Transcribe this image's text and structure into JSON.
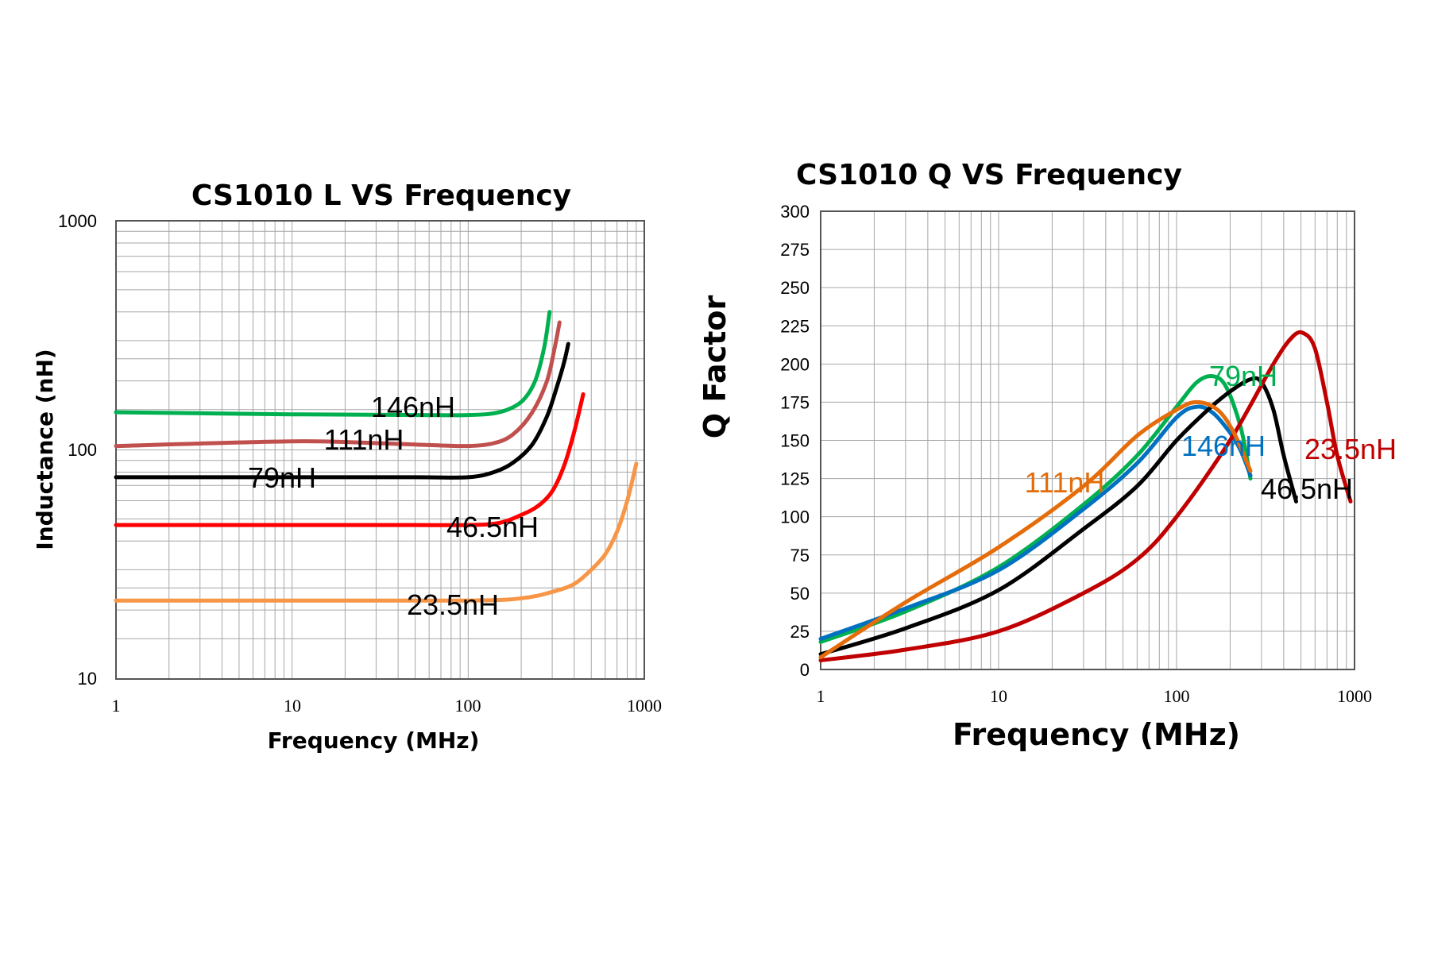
{
  "chart_data": [
    {
      "type": "line",
      "title": "CS1010 L VS Frequency",
      "xlabel": "Frequency (MHz)",
      "ylabel": "Inductance (nH)",
      "xscale": "log",
      "yscale": "log",
      "xlim": [
        1,
        1000
      ],
      "ylim": [
        10,
        1000
      ],
      "xticks": [
        "1",
        "10",
        "100",
        "1000"
      ],
      "yticks": [
        "10",
        "100",
        "1000"
      ],
      "grid": true,
      "series": [
        {
          "name": "146nH",
          "color": "#00b050",
          "x": [
            1,
            10,
            50,
            100,
            150,
            200,
            240,
            270,
            290
          ],
          "y": [
            146,
            143,
            142,
            142,
            146,
            162,
            200,
            280,
            400
          ]
        },
        {
          "name": "111nH",
          "color": "#c0504d",
          "x": [
            1,
            10,
            30,
            60,
            100,
            140,
            180,
            230,
            280,
            310,
            330
          ],
          "y": [
            104,
            109,
            107,
            105,
            104,
            107,
            117,
            145,
            200,
            280,
            360
          ]
        },
        {
          "name": "79nH",
          "color": "#000000",
          "x": [
            1,
            10,
            50,
            100,
            140,
            180,
            230,
            280,
            320,
            350,
            370
          ],
          "y": [
            76,
            76,
            76,
            76,
            80,
            88,
            105,
            140,
            190,
            240,
            290
          ]
        },
        {
          "name": "46.5nH",
          "color": "#ff0000",
          "x": [
            1,
            10,
            50,
            100,
            150,
            200,
            250,
            300,
            350,
            400,
            450
          ],
          "y": [
            47,
            47,
            47,
            47,
            48,
            52,
            57,
            66,
            85,
            120,
            175
          ]
        },
        {
          "name": "23.5nH",
          "color": "#f79646",
          "x": [
            1,
            10,
            100,
            200,
            300,
            400,
            500,
            600,
            700,
            800,
            900
          ],
          "y": [
            22,
            22,
            22,
            22.5,
            24,
            26,
            30,
            35,
            44,
            60,
            87
          ]
        }
      ]
    },
    {
      "type": "line",
      "title": "CS1010 Q VS Frequency",
      "xlabel": "Frequency (MHz)",
      "ylabel": "Q Factor",
      "xscale": "log",
      "yscale": "linear",
      "xlim": [
        1,
        1000
      ],
      "ylim": [
        0,
        300
      ],
      "xticks": [
        "1",
        "10",
        "100",
        "1000"
      ],
      "yticks": [
        "0",
        "25",
        "50",
        "75",
        "100",
        "125",
        "150",
        "175",
        "200",
        "225",
        "250",
        "275",
        "300"
      ],
      "grid": true,
      "series": [
        {
          "name": "79nH",
          "color": "#00b050",
          "x": [
            1,
            3,
            10,
            30,
            60,
            100,
            130,
            160,
            190,
            230,
            260
          ],
          "y": [
            18,
            38,
            67,
            108,
            140,
            172,
            188,
            192,
            185,
            158,
            125
          ]
        },
        {
          "name": "146nH",
          "color": "#0070c0",
          "x": [
            1,
            3,
            10,
            30,
            60,
            100,
            130,
            160,
            200,
            230,
            260
          ],
          "y": [
            20,
            40,
            65,
            105,
            135,
            165,
            172,
            168,
            155,
            143,
            127
          ]
        },
        {
          "name": "46.5nH",
          "color": "#000000",
          "x": [
            1,
            3,
            10,
            30,
            60,
            100,
            150,
            200,
            260,
            300,
            350,
            400,
            470
          ],
          "y": [
            10,
            27,
            52,
            92,
            120,
            150,
            170,
            182,
            190,
            188,
            170,
            140,
            110
          ]
        },
        {
          "name": "23.5nH",
          "color": "#c00000",
          "x": [
            1,
            3,
            10,
            30,
            60,
            100,
            200,
            350,
            450,
            520,
            600,
            700,
            800,
            950
          ],
          "y": [
            6,
            13,
            25,
            50,
            72,
            100,
            150,
            200,
            218,
            220,
            210,
            175,
            140,
            110
          ]
        },
        {
          "name": "111nH",
          "color": "#e46c0a",
          "x": [
            1,
            3,
            10,
            30,
            60,
            100,
            130,
            170,
            210,
            260
          ],
          "y": [
            8,
            44,
            80,
            120,
            153,
            170,
            175,
            170,
            155,
            130
          ]
        }
      ]
    }
  ]
}
